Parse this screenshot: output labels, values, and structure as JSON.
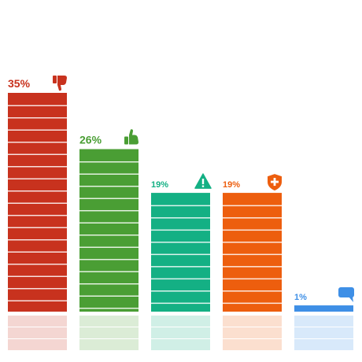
{
  "chart_data": {
    "type": "bar",
    "categories": [
      "dislike",
      "like",
      "warning",
      "protection",
      "comment"
    ],
    "values": [
      35,
      26,
      19,
      19,
      1
    ],
    "labels": [
      "35%",
      "26%",
      "19%",
      "19%",
      "1%"
    ],
    "ylim": [
      0,
      35
    ],
    "grid": false,
    "colors": [
      "#c8321e",
      "#4a9e34",
      "#14b084",
      "#ed5e0e",
      "#3e8fe6"
    ],
    "icons": [
      "thumbs-down-icon",
      "thumbs-up-icon",
      "warning-icon",
      "shield-plus-icon",
      "speech-bubble-icon"
    ]
  }
}
